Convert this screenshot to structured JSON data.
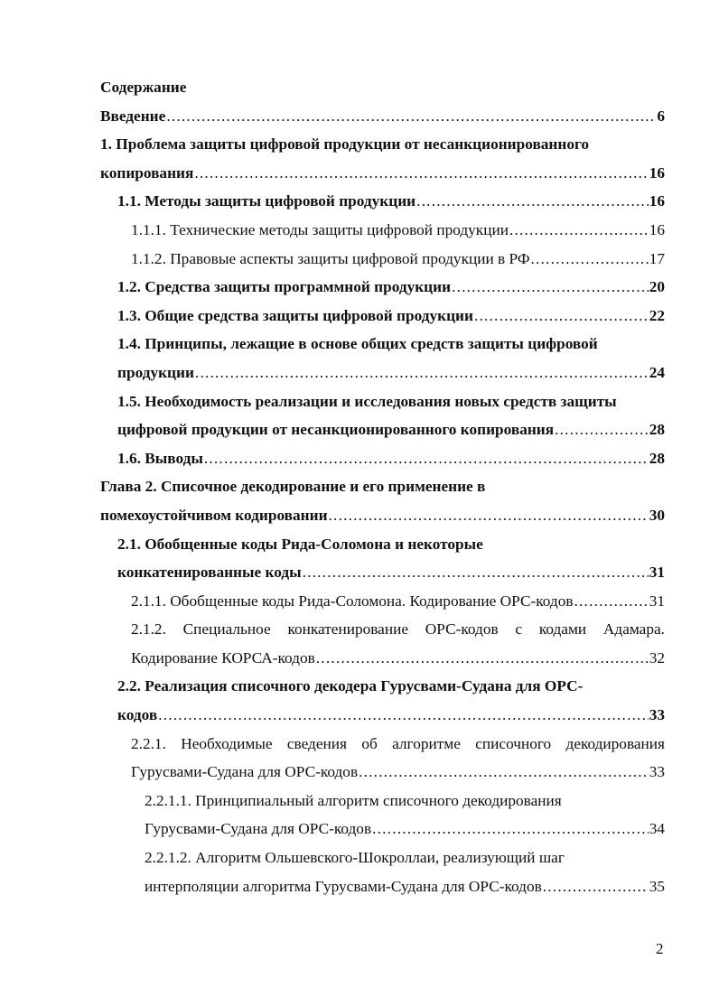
{
  "heading": "Содержание",
  "entries": [
    {
      "lines": [
        "Введение"
      ],
      "page": "6",
      "level": 1,
      "bold": true
    },
    {
      "lines": [
        "1. Проблема защиты цифровой продукции от несанкционированного",
        "копирования "
      ],
      "page": "16",
      "level": 1,
      "bold": true
    },
    {
      "lines": [
        "1.1. Методы защиты цифровой продукции"
      ],
      "page": "16",
      "level": 2,
      "bold": true
    },
    {
      "lines": [
        "1.1.1. Технические методы защиты цифровой продукции"
      ],
      "page": "16",
      "level": 3,
      "bold": false
    },
    {
      "lines": [
        "1.1.2. Правовые аспекты защиты цифровой продукции в РФ"
      ],
      "page": "17",
      "level": 3,
      "bold": false
    },
    {
      "lines": [
        "1.2. Средства защиты программной продукции"
      ],
      "page": "20",
      "level": 2,
      "bold": true
    },
    {
      "lines": [
        "1.3. Общие средства защиты цифровой продукции "
      ],
      "page": "22",
      "level": 2,
      "bold": true
    },
    {
      "lines": [
        "1.4. Принципы, лежащие в основе общих средств защиты цифровой",
        "продукции "
      ],
      "page": "24",
      "level": 2,
      "bold": true
    },
    {
      "lines": [
        "1.5. Необходимость реализации и исследования новых средств защиты",
        "цифровой продукции от несанкционированного копирования "
      ],
      "page": "28",
      "level": 2,
      "bold": true
    },
    {
      "lines": [
        "1.6. Выводы"
      ],
      "page": "28",
      "level": 2,
      "bold": true
    },
    {
      "lines": [
        "Глава 2. Списочное декодирование и его применение в",
        "помехоустойчивом кодировании "
      ],
      "page": "30",
      "level": 1,
      "bold": true
    },
    {
      "lines": [
        "2.1. Обобщенные коды Рида-Соломона и некоторые",
        "конкатенированные коды "
      ],
      "page": "31",
      "level": 2,
      "bold": true
    },
    {
      "lines": [
        "2.1.1. Обобщенные коды Рида-Соломона. Кодирование ОРС-кодов"
      ],
      "page": "31",
      "level": 3,
      "bold": false
    },
    {
      "lines": [
        "2.1.2. Специальное конкатенирование ОРС-кодов с кодами Адамара.",
        "Кодирование КОРСА-кодов "
      ],
      "page": "32",
      "level": 3,
      "bold": false,
      "justify": true
    },
    {
      "lines": [
        "2.2. Реализация списочного декодера Гурусвами-Судана для ОРС-",
        "кодов"
      ],
      "page": "33",
      "level": 2,
      "bold": true
    },
    {
      "lines": [
        "2.2.1. Необходимые сведения об алгоритме списочного декодирования",
        "Гурусвами-Судана для ОРС-кодов "
      ],
      "page": "33",
      "level": 3,
      "bold": false,
      "justify": true
    },
    {
      "lines": [
        "2.2.1.1. Принципиальный алгоритм списочного декодирования",
        "Гурусвами-Судана для ОРС-кодов"
      ],
      "page": "34",
      "level": 4,
      "bold": false
    },
    {
      "lines": [
        "2.2.1.2. Алгоритм Ольшевского-Шокроллаи, реализующий шаг",
        "интерполяции алгоритма Гурусвами-Судана для ОРС-кодов"
      ],
      "page": "35",
      "level": 4,
      "bold": false
    }
  ],
  "page_number": "2"
}
